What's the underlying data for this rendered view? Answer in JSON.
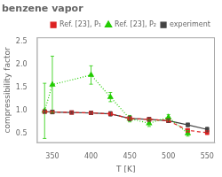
{
  "chart_data": {
    "type": "line",
    "title": "benzene vapor",
    "xlabel": "T [K]",
    "ylabel": "compressibility factor",
    "xlim": [
      330,
      560
    ],
    "ylim": [
      0.3,
      2.6
    ],
    "xticks": [
      350,
      400,
      450,
      500,
      550
    ],
    "yticks": [
      0.5,
      {
        "value": 1.0,
        "label": "1.0"
      },
      1.5,
      {
        "value": 2.0,
        "label": "2.0"
      },
      2.5
    ],
    "grid": false,
    "legend": "upper right",
    "series": [
      {
        "name": "Ref. [23], P₁",
        "color": "#dd2222",
        "marker": "square",
        "line_style": "dashed",
        "x": [
          340,
          350,
          375,
          400,
          425,
          450,
          475,
          500,
          525,
          550
        ],
        "values": [
          0.985,
          0.975,
          0.965,
          0.955,
          0.935,
          0.835,
          0.815,
          0.785,
          0.575,
          0.525
        ],
        "yerr": [
          0.03,
          0.03,
          0.02,
          0.02,
          0.03,
          0.05,
          0.04,
          0.04,
          0.04,
          0.04
        ]
      },
      {
        "name": "Ref. [23], P₂",
        "color": "#22cc00",
        "marker": "triangle",
        "line_style": "dotted",
        "x": [
          340,
          350,
          400,
          425,
          450,
          475,
          500,
          525
        ],
        "values": [
          1.0,
          1.57,
          1.78,
          1.3,
          0.83,
          0.73,
          0.86,
          0.51
        ],
        "yerr": [
          0.6,
          0.62,
          0.2,
          0.1,
          0.07,
          0.07,
          0.06,
          0.06
        ]
      },
      {
        "name": "experiment",
        "color": "#444444",
        "marker": "square",
        "line_style": "solid",
        "x": [
          340,
          350,
          375,
          400,
          425,
          450,
          475,
          500,
          525,
          550
        ],
        "values": [
          0.985,
          0.975,
          0.965,
          0.955,
          0.935,
          0.835,
          0.815,
          0.785,
          0.695,
          0.595
        ],
        "yerr": [
          0.03,
          0.04,
          0.02,
          0.03,
          0.05,
          0.05,
          0.04,
          0.04,
          0.04,
          0.05
        ]
      }
    ]
  }
}
